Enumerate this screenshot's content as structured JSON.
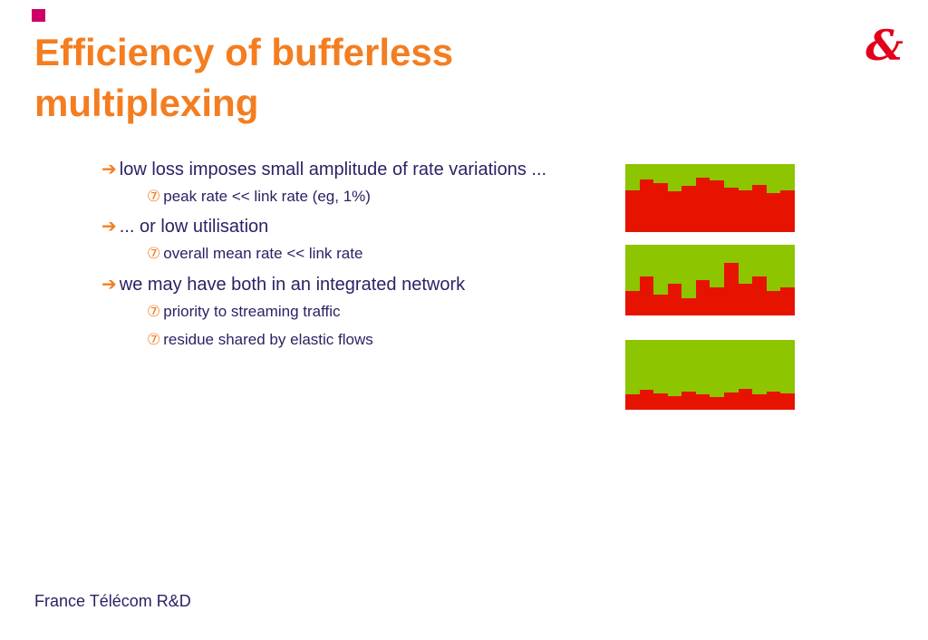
{
  "slide": {
    "title_line1": "Efficiency of bufferless",
    "title_line2": "multiplexing",
    "footer": "France Télécom R&D",
    "logo_glyph": "&"
  },
  "markers": {
    "arrow": "➔",
    "seven": "⑦"
  },
  "bullets": [
    {
      "level": 1,
      "text": "low loss imposes small amplitude of rate variations ..."
    },
    {
      "level": 2,
      "text": "peak rate << link rate (eg, 1%)"
    },
    {
      "level": 1,
      "text": "... or low utilisation"
    },
    {
      "level": 2,
      "text": "overall mean rate << link rate"
    },
    {
      "level": 1,
      "text": "we may have both in an integrated network"
    },
    {
      "level": 2,
      "text": "priority to streaming traffic"
    },
    {
      "level": 2,
      "text": "residue shared by elastic flows"
    }
  ],
  "colors": {
    "accent_orange": "#f47d20",
    "text_navy": "#2d2164",
    "brand_magenta": "#cc0066",
    "logo_red": "#e2001a",
    "chart_green": "#8dc500",
    "chart_red": "#e61300",
    "page_bg": "#ffffff"
  },
  "chart_data": [
    {
      "type": "bar",
      "description_role": "traffic rate vs link capacity, high utilisation small amplitude",
      "ylim": [
        0,
        1
      ],
      "values": [
        0.62,
        0.78,
        0.72,
        0.6,
        0.68,
        0.8,
        0.76,
        0.66,
        0.62,
        0.7,
        0.58,
        0.62
      ]
    },
    {
      "type": "bar",
      "description_role": "traffic rate vs link capacity, low utilisation large variation",
      "ylim": [
        0,
        1
      ],
      "values": [
        0.35,
        0.55,
        0.3,
        0.45,
        0.25,
        0.5,
        0.4,
        0.75,
        0.45,
        0.55,
        0.35,
        0.4
      ]
    },
    {
      "type": "bar",
      "description_role": "traffic rate vs link capacity, very low utilisation",
      "ylim": [
        0,
        1
      ],
      "values": [
        0.22,
        0.28,
        0.24,
        0.2,
        0.26,
        0.22,
        0.18,
        0.25,
        0.3,
        0.22,
        0.26,
        0.24
      ]
    }
  ]
}
